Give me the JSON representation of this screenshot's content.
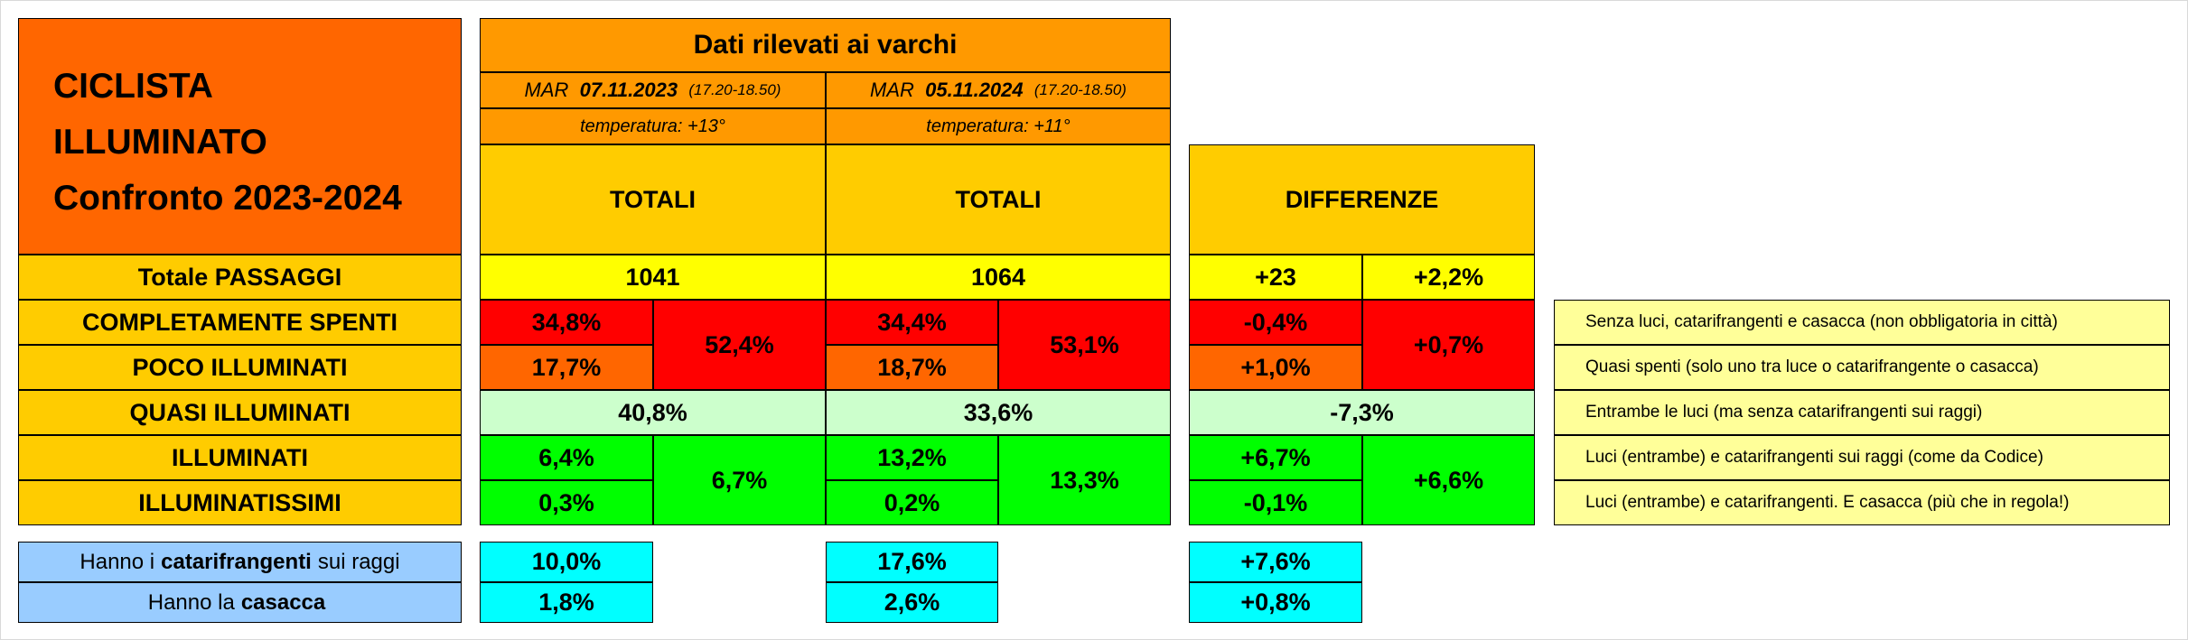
{
  "title": {
    "line1": "CICLISTA",
    "line2": "ILLUMINATO",
    "line3": "Confronto 2023-2024"
  },
  "header": {
    "main": "Dati rilevati ai varchi",
    "d2023": {
      "day": "MAR",
      "date": "07.11.2023",
      "time": "(17.20-18.50)",
      "temp": "temperatura: +13°",
      "totals": "TOTALI"
    },
    "d2024": {
      "day": "MAR",
      "date": "05.11.2024",
      "time": "(17.20-18.50)",
      "temp": "temperatura: +11°",
      "totals": "TOTALI"
    },
    "diff": "DIFFERENZE"
  },
  "rows": {
    "passaggi": {
      "label": "Totale PASSAGGI",
      "v2023": "1041",
      "v2024": "1064",
      "diff_abs": "+23",
      "diff_pct": "+2,2%"
    },
    "spenti": {
      "label": "COMPLETAMENTE SPENTI",
      "v2023": "34,8%",
      "v2024": "34,4%",
      "diff": "-0,4%",
      "note": "Senza luci, catarifrangenti e casacca (non obbligatoria in città)"
    },
    "poco": {
      "label": "POCO ILLUMINATI",
      "v2023": "17,7%",
      "v2024": "18,7%",
      "diff": "+1,0%",
      "note": "Quasi spenti (solo uno tra luce o catarifrangente o casacca)"
    },
    "quasi": {
      "label": "QUASI ILLUMINATI",
      "v2023": "40,8%",
      "v2024": "33,6%",
      "diff": "-7,3%",
      "note": "Entrambe le luci (ma senza catarifrangenti sui raggi)"
    },
    "illuminati": {
      "label": "ILLUMINATI",
      "v2023": "6,4%",
      "v2024": "13,2%",
      "diff": "+6,7%",
      "note": "Luci (entrambe) e catarifrangenti sui raggi (come da Codice)"
    },
    "illuminatissimi": {
      "label": "ILLUMINATISSIMI",
      "v2023": "0,3%",
      "v2024": "0,2%",
      "diff": "-0,1%",
      "note": "Luci (entrambe) e catarifrangenti. E casacca (più che in regola!)"
    }
  },
  "groups": {
    "bad": {
      "v2023": "52,4%",
      "v2024": "53,1%",
      "diff": "+0,7%"
    },
    "good": {
      "v2023": "6,7%",
      "v2024": "13,3%",
      "diff": "+6,6%"
    }
  },
  "bottom": {
    "catarifrangenti": {
      "pre": "Hanno i",
      "bold": "catarifrangenti",
      "post": "sui raggi",
      "v2023": "10,0%",
      "v2024": "17,6%",
      "diff": "+7,6%"
    },
    "casacca": {
      "pre": "Hanno la",
      "bold": "casacca",
      "v2023": "1,8%",
      "v2024": "2,6%",
      "diff": "+0,8%"
    }
  },
  "colors": {
    "orange_header": "#ff9900",
    "gold": "#ffcc00",
    "yellow": "#ffff00",
    "red": "#ff0000",
    "dark_orange": "#ff6600",
    "mint": "#ccffcc",
    "green": "#00ff00",
    "cyan": "#00ffff",
    "light_blue": "#99ccff",
    "pale_yellow": "#ffff99"
  }
}
